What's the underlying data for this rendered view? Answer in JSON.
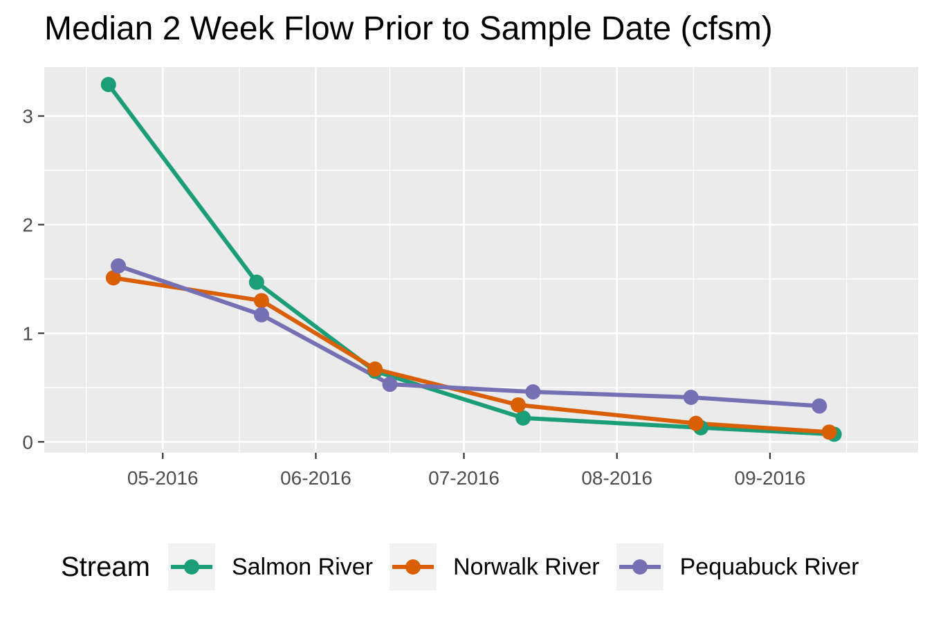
{
  "chart_data": {
    "type": "line",
    "title": "Median 2 Week Flow Prior to Sample Date (cfsm)",
    "xlabel": "",
    "ylabel": "",
    "x_type": "date",
    "xlim": [
      "2016-04-07",
      "2016-10-01"
    ],
    "ylim": [
      -0.1,
      3.45
    ],
    "x_ticks": [
      {
        "date": "2016-05-01",
        "label": "05-2016"
      },
      {
        "date": "2016-06-01",
        "label": "06-2016"
      },
      {
        "date": "2016-07-01",
        "label": "07-2016"
      },
      {
        "date": "2016-08-01",
        "label": "08-2016"
      },
      {
        "date": "2016-09-01",
        "label": "09-2016"
      }
    ],
    "y_ticks": [
      0,
      1,
      2,
      3
    ],
    "grid": true,
    "legend_title": "Stream",
    "legend_position": "bottom",
    "series": [
      {
        "name": "Salmon River",
        "color": "#1b9e77",
        "points": [
          {
            "x": "2016-04-20",
            "y": 3.29
          },
          {
            "x": "2016-05-20",
            "y": 1.47
          },
          {
            "x": "2016-06-13",
            "y": 0.65
          },
          {
            "x": "2016-07-13",
            "y": 0.22
          },
          {
            "x": "2016-08-18",
            "y": 0.13
          },
          {
            "x": "2016-09-14",
            "y": 0.07
          }
        ]
      },
      {
        "name": "Norwalk River",
        "color": "#d95f02",
        "points": [
          {
            "x": "2016-04-21",
            "y": 1.51
          },
          {
            "x": "2016-05-21",
            "y": 1.3
          },
          {
            "x": "2016-06-13",
            "y": 0.67
          },
          {
            "x": "2016-07-12",
            "y": 0.34
          },
          {
            "x": "2016-08-17",
            "y": 0.17
          },
          {
            "x": "2016-09-13",
            "y": 0.09
          }
        ]
      },
      {
        "name": "Pequabuck River",
        "color": "#7570b3",
        "points": [
          {
            "x": "2016-04-22",
            "y": 1.62
          },
          {
            "x": "2016-05-21",
            "y": 1.17
          },
          {
            "x": "2016-06-16",
            "y": 0.53
          },
          {
            "x": "2016-07-15",
            "y": 0.46
          },
          {
            "x": "2016-08-16",
            "y": 0.41
          },
          {
            "x": "2016-09-11",
            "y": 0.33
          }
        ]
      }
    ]
  }
}
